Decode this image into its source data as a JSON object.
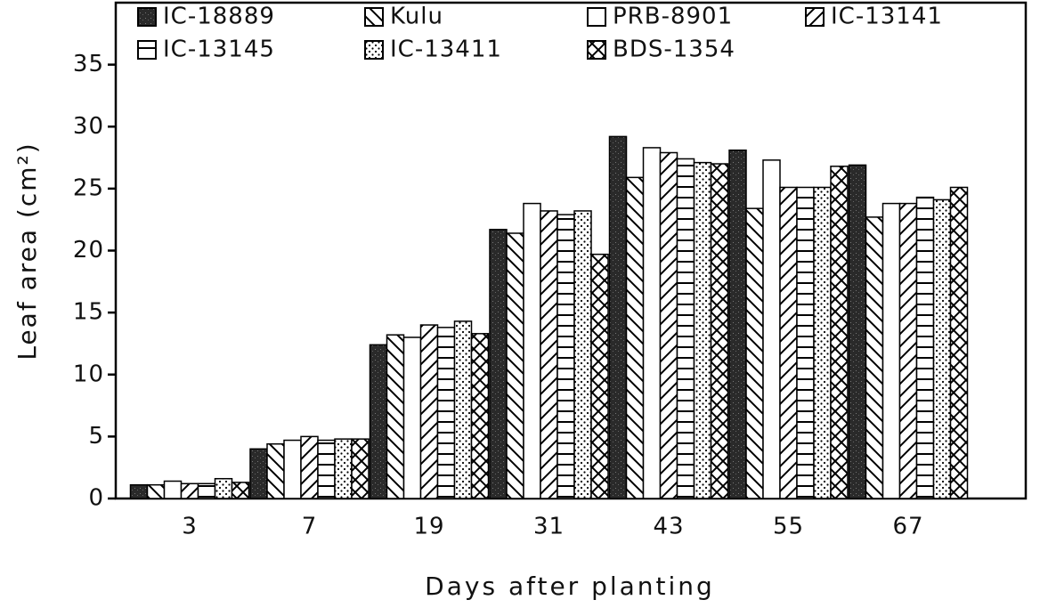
{
  "chart_data": {
    "type": "bar",
    "x_label": "Days after planting",
    "y_label": "Leaf area (cm²)",
    "categories": [
      "3",
      "7",
      "19",
      "31",
      "43",
      "55",
      "67"
    ],
    "series": [
      {
        "name": "IC-18889",
        "pattern": "solid",
        "values": [
          1.1,
          4.0,
          12.4,
          21.7,
          29.2,
          28.1,
          26.9
        ]
      },
      {
        "name": "Kulu",
        "pattern": "back-diagonal",
        "values": [
          1.1,
          4.4,
          13.2,
          21.4,
          25.9,
          23.4,
          22.7
        ]
      },
      {
        "name": "PRB-8901",
        "pattern": "open",
        "values": [
          1.4,
          4.7,
          13.0,
          23.8,
          28.3,
          27.3,
          23.8
        ]
      },
      {
        "name": "IC-13141",
        "pattern": "diagonal",
        "values": [
          1.2,
          5.0,
          14.0,
          23.2,
          27.9,
          25.1,
          23.8
        ]
      },
      {
        "name": "IC-13145",
        "pattern": "horizontal",
        "values": [
          1.2,
          4.7,
          13.8,
          22.9,
          27.4,
          25.1,
          24.3
        ]
      },
      {
        "name": "IC-13411",
        "pattern": "dotted",
        "values": [
          1.6,
          4.8,
          14.3,
          23.2,
          27.1,
          25.1,
          24.1
        ]
      },
      {
        "name": "BDS-1354",
        "pattern": "crosshatch",
        "values": [
          1.3,
          4.8,
          13.3,
          19.7,
          27.0,
          26.8,
          25.1
        ]
      }
    ],
    "ylim": [
      0,
      40
    ],
    "yticks": [
      0,
      5,
      10,
      15,
      20,
      25,
      30,
      35
    ]
  }
}
